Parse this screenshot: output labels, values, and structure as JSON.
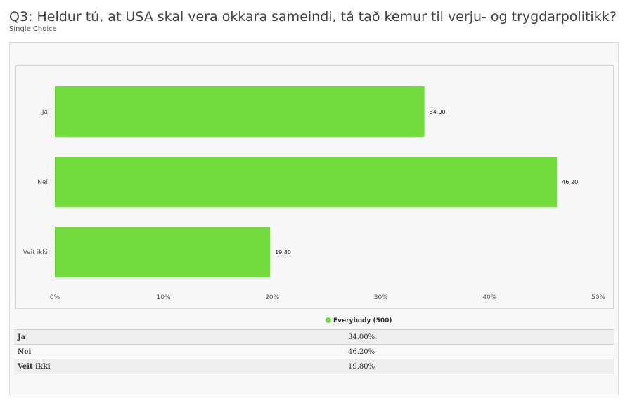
{
  "header": {
    "title": "Q3: Heldur tú, at USA skal vera okkara sameindi, tá tað kemur til verju- og trygdarpolitikk?",
    "subtitle": "Single Choice"
  },
  "chart_data": {
    "type": "bar",
    "orientation": "horizontal",
    "categories": [
      "Ja",
      "Nei",
      "Veit ikki"
    ],
    "series": [
      {
        "name": "Everybody (500)",
        "values": [
          34.0,
          46.2,
          19.8
        ]
      }
    ],
    "data_labels": [
      "34.00",
      "46.20",
      "19.80"
    ],
    "x_ticks": [
      "0%",
      "10%",
      "20%",
      "30%",
      "40%",
      "50%"
    ],
    "xlim": [
      0,
      50
    ],
    "grid": false,
    "legend_position": "bottom-center",
    "bar_color": "#72dc3e"
  },
  "legend": {
    "label": "Everybody (500)",
    "color": "#72dc3e"
  },
  "table": {
    "rows": [
      {
        "label": "Ja",
        "value": "34.00%"
      },
      {
        "label": "Nei",
        "value": "46.20%"
      },
      {
        "label": "Veit ikki",
        "value": "19.80%"
      }
    ]
  }
}
